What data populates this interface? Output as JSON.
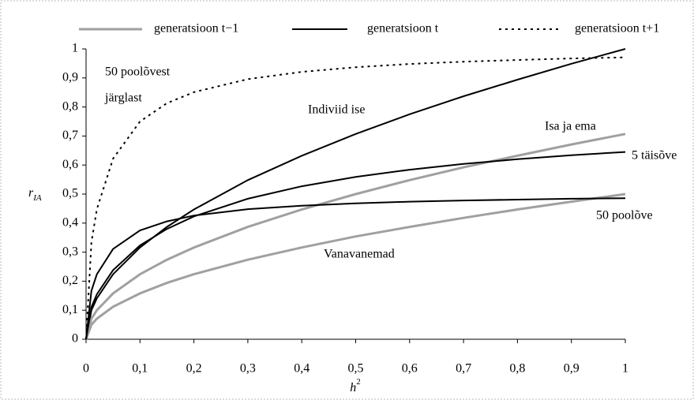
{
  "chart_data": {
    "type": "line",
    "xlabel": "h",
    "xlabel_sup": "2",
    "ylabel": "r",
    "ylabel_sub": "IA",
    "x": [
      0,
      0.01,
      0.02,
      0.05,
      0.1,
      0.15,
      0.2,
      0.3,
      0.4,
      0.5,
      0.6,
      0.7,
      0.8,
      0.9,
      1
    ],
    "xlim": [
      0,
      1
    ],
    "ylim": [
      0,
      1
    ],
    "xticks": [
      0,
      {
        "value": 0.1,
        "label": "0,1"
      },
      {
        "value": 0.2,
        "label": "0,2"
      },
      {
        "value": 0.3,
        "label": "0,3"
      },
      {
        "value": 0.4,
        "label": "0,4"
      },
      {
        "value": 0.5,
        "label": "0,5"
      },
      {
        "value": 0.6,
        "label": "0,6"
      },
      {
        "value": 0.7,
        "label": "0,7"
      },
      {
        "value": 0.8,
        "label": "0,8"
      },
      {
        "value": 0.9,
        "label": "0,9"
      },
      1
    ],
    "yticks": [
      0,
      {
        "value": 0.1,
        "label": "0,1"
      },
      {
        "value": 0.2,
        "label": "0,2"
      },
      {
        "value": 0.3,
        "label": "0,3"
      },
      {
        "value": 0.4,
        "label": "0,4"
      },
      {
        "value": 0.5,
        "label": "0,5"
      },
      {
        "value": 0.6,
        "label": "0,6"
      },
      {
        "value": 0.7,
        "label": "0,7"
      },
      {
        "value": 0.8,
        "label": "0,8"
      },
      {
        "value": 0.9,
        "label": "0,9"
      },
      1
    ],
    "legend": [
      {
        "name": "generatsioon t−1",
        "color": "#a0a0a0",
        "style": "grey"
      },
      {
        "name": "generatsioon t",
        "color": "#000000",
        "style": "solid"
      },
      {
        "name": "generatsioon t+1",
        "color": "#000000",
        "style": "dotted"
      }
    ],
    "series": [
      {
        "name": "Indiviid ise",
        "color": "#000000",
        "style": "solid",
        "values": [
          0,
          0.1,
          0.141,
          0.224,
          0.316,
          0.387,
          0.447,
          0.548,
          0.632,
          0.707,
          0.775,
          0.837,
          0.894,
          0.949,
          1
        ]
      },
      {
        "name": "Isa ja ema",
        "color": "#a0a0a0",
        "style": "grey",
        "values": [
          0,
          0.071,
          0.1,
          0.158,
          0.224,
          0.274,
          0.316,
          0.387,
          0.447,
          0.5,
          0.548,
          0.592,
          0.632,
          0.671,
          0.707
        ]
      },
      {
        "name": "Vanavanemad",
        "color": "#a0a0a0",
        "style": "grey",
        "values": [
          0,
          0.05,
          0.071,
          0.112,
          0.158,
          0.194,
          0.224,
          0.274,
          0.316,
          0.354,
          0.387,
          0.418,
          0.447,
          0.474,
          0.5
        ]
      },
      {
        "name": "5 täisõve",
        "color": "#000000",
        "style": "solid",
        "values": [
          0,
          0.111,
          0.155,
          0.238,
          0.323,
          0.38,
          0.423,
          0.484,
          0.527,
          0.559,
          0.584,
          0.604,
          0.62,
          0.634,
          0.645
        ]
      },
      {
        "name": "50 poolõve",
        "color": "#000000",
        "style": "solid",
        "values": [
          0,
          0.167,
          0.224,
          0.311,
          0.375,
          0.406,
          0.426,
          0.448,
          0.46,
          0.468,
          0.474,
          0.478,
          0.481,
          0.484,
          0.486
        ]
      },
      {
        "name": "50 poolõvest järglast",
        "color": "#000000",
        "style": "dotted",
        "values": [
          0,
          0.334,
          0.448,
          0.622,
          0.75,
          0.813,
          0.851,
          0.896,
          0.921,
          0.937,
          0.948,
          0.956,
          0.962,
          0.967,
          0.971
        ]
      }
    ],
    "annotations": [
      "50 poolõvest",
      "järglast",
      "Indiviid ise",
      "Isa ja ema",
      "5 täisõve",
      "50 poolõve",
      "Vanavanemad"
    ]
  }
}
